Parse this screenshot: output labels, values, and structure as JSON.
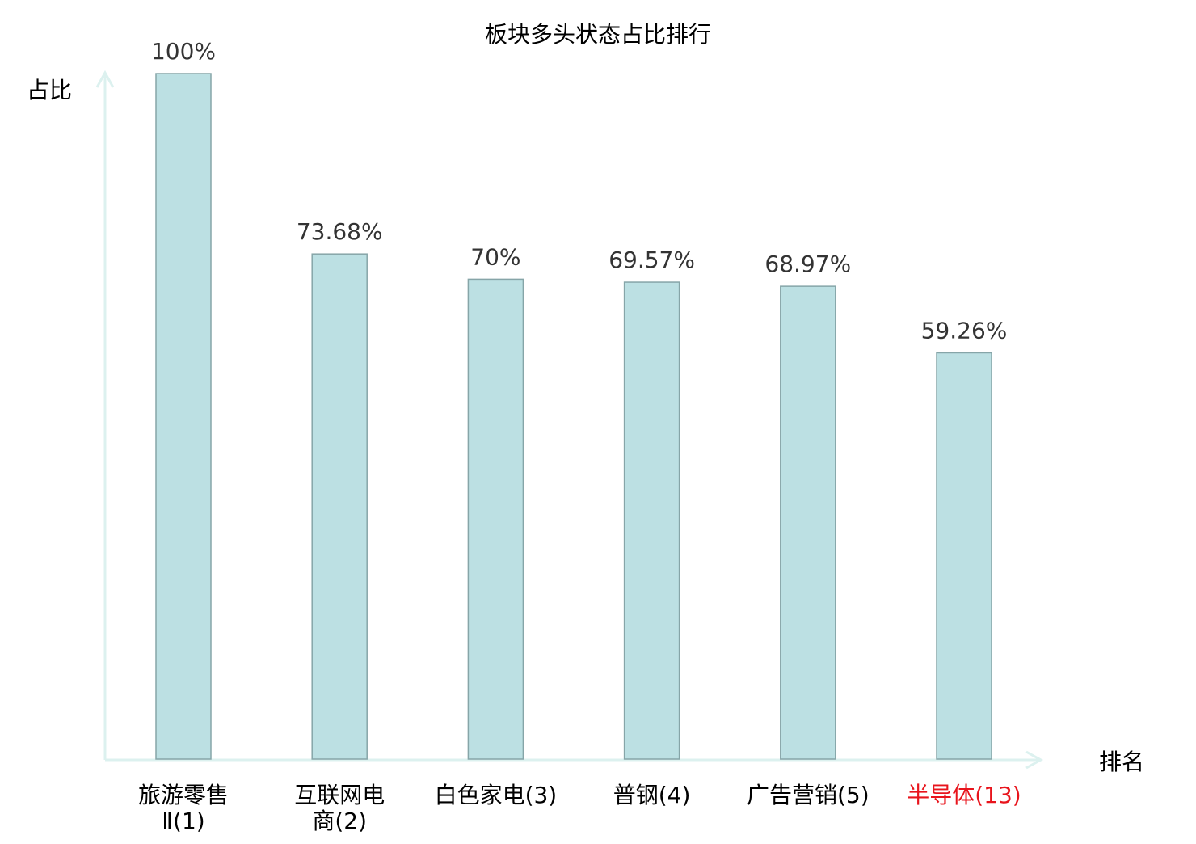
{
  "chart_data": {
    "type": "bar",
    "title": "板块多头状态占比排行",
    "xlabel": "排名",
    "ylabel": "占比",
    "ylim": [
      0,
      100
    ],
    "grid": false,
    "categories": [
      {
        "lines": [
          "旅游零售",
          "Ⅱ(1)"
        ],
        "highlight": false
      },
      {
        "lines": [
          "互联网电",
          "商(2)"
        ],
        "highlight": false
      },
      {
        "lines": [
          "白色家电(3)"
        ],
        "highlight": false
      },
      {
        "lines": [
          "普钢(4)"
        ],
        "highlight": false
      },
      {
        "lines": [
          "广告营销(5)"
        ],
        "highlight": false
      },
      {
        "lines": [
          "半导体(13)"
        ],
        "highlight": true
      }
    ],
    "values": [
      100,
      73.68,
      70,
      69.57,
      68.97,
      59.26
    ],
    "value_labels": [
      "100%",
      "73.68%",
      "70%",
      "69.57%",
      "68.97%",
      "59.26%"
    ],
    "colors": {
      "bar_fill": "#bce0e3",
      "bar_stroke": "#86a5a8",
      "axis": "#dcf1ef",
      "highlight": "#e8141c",
      "text": "#000000",
      "value_text": "#333333"
    }
  }
}
